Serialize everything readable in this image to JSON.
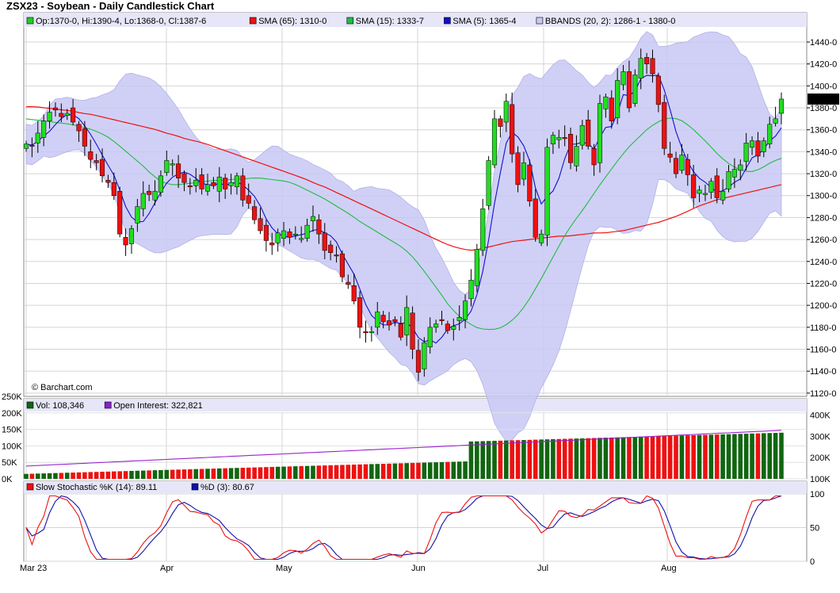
{
  "title": "ZSX23 - Soybean - Daily Candlestick Chart",
  "watermark": "© Barchart.com",
  "legend_price": [
    {
      "label": "Op:1370-0, Hi:1390-4, Lo:1368-0, Cl:1387-6",
      "color": "#22cc22"
    },
    {
      "label": "SMA (65): 1310-0",
      "color": "#ee1111"
    },
    {
      "label": "SMA (15): 1333-7",
      "color": "#22bb44"
    },
    {
      "label": "SMA (5): 1365-4",
      "color": "#1111cc"
    },
    {
      "label": "BBANDS (20, 2): 1286-1 - 1380-0",
      "color": "#c8c8f4"
    }
  ],
  "legend_volume": [
    {
      "label": "Vol: 108,346",
      "color": "#116611"
    },
    {
      "label": "Open Interest: 322,821",
      "color": "#8822cc"
    }
  ],
  "legend_stoch": [
    {
      "label": "Slow Stochastic %K (14): 89.11",
      "color": "#ee1111"
    },
    {
      "label": "%D (3): 80.67",
      "color": "#1111aa"
    }
  ],
  "last_price_label": "1387-6",
  "colors": {
    "up": "#22dd22",
    "down": "#ee1111",
    "vol_up": "#116611",
    "vol_down": "#ee1111",
    "band": "#c8c8f4"
  },
  "chart_data": {
    "type": "candlestick",
    "symbol": "ZSX23",
    "x_tick_labels": [
      "Mar 23",
      "Apr",
      "May",
      "Jun",
      "Jul",
      "Aug"
    ],
    "price_ticks": [
      "1440-0",
      "1420-0",
      "1400-0",
      "1380-0",
      "1360-0",
      "1340-0",
      "1320-0",
      "1300-0",
      "1280-0",
      "1260-0",
      "1240-0",
      "1220-0",
      "1200-0",
      "1180-0",
      "1160-0",
      "1140-0",
      "1120-0"
    ],
    "price_range": [
      1117,
      1453
    ],
    "volume_left_ticks": [
      "250K",
      "200K",
      "150K",
      "100K",
      "50K",
      "0K"
    ],
    "volume_range": [
      0,
      250000
    ],
    "oi_right_ticks": [
      "400K",
      "300K",
      "200K",
      "100K"
    ],
    "oi_range": [
      100000,
      420000
    ],
    "stoch_ticks": [
      "100",
      "50",
      "0"
    ],
    "stoch_range": [
      0,
      100
    ],
    "closes": [
      1347,
      1345,
      1357,
      1368,
      1376,
      1378,
      1372,
      1375,
      1367,
      1359,
      1345,
      1333,
      1330,
      1318,
      1312,
      1300,
      1265,
      1255,
      1270,
      1290,
      1302,
      1301,
      1304,
      1318,
      1332,
      1329,
      1316,
      1312,
      1308,
      1314,
      1306,
      1310,
      1309,
      1317,
      1306,
      1312,
      1318,
      1296,
      1293,
      1278,
      1268,
      1259,
      1255,
      1266,
      1268,
      1262,
      1265,
      1261,
      1273,
      1281,
      1265,
      1250,
      1248,
      1245,
      1226,
      1219,
      1204,
      1180,
      1175,
      1176,
      1194,
      1185,
      1182,
      1185,
      1171,
      1198,
      1160,
      1139,
      1166,
      1180,
      1183,
      1186,
      1177,
      1181,
      1189,
      1204,
      1223,
      1251,
      1288,
      1332,
      1370,
      1363,
      1386,
      1338,
      1310,
      1330,
      1295,
      1262,
      1265,
      1344,
      1355,
      1353,
      1352,
      1330,
      1345,
      1364,
      1345,
      1328,
      1384,
      1390,
      1368,
      1405,
      1413,
      1380,
      1410,
      1425,
      1420,
      1411,
      1383,
      1343,
      1335,
      1320,
      1337,
      1319,
      1298,
      1305,
      1302,
      1313,
      1298,
      1304,
      1322,
      1324,
      1328,
      1348,
      1350,
      1336,
      1350,
      1365,
      1370,
      1388
    ],
    "sma65": [
      1381,
      1381,
      1380,
      1379,
      1378,
      1377,
      1375,
      1374,
      1372,
      1370,
      1368,
      1366,
      1364,
      1362,
      1360,
      1357,
      1355,
      1352,
      1350,
      1348,
      1345,
      1342,
      1339,
      1336,
      1333,
      1330,
      1327,
      1324,
      1321,
      1318,
      1315,
      1311,
      1308,
      1304,
      1300,
      1296,
      1292,
      1288,
      1284,
      1280,
      1276,
      1272,
      1268,
      1264,
      1260,
      1256,
      1253,
      1251,
      1250,
      1252,
      1254,
      1256,
      1258,
      1259,
      1260,
      1261,
      1262,
      1263,
      1263,
      1264,
      1265,
      1266,
      1266,
      1267,
      1268,
      1270,
      1272,
      1274,
      1276,
      1279,
      1282,
      1286,
      1290,
      1293,
      1296,
      1298,
      1300,
      1302,
      1304,
      1306,
      1308,
      1310
    ],
    "sma15": [
      1370,
      1369,
      1368,
      1367,
      1366,
      1365,
      1363,
      1361,
      1358,
      1354,
      1348,
      1341,
      1334,
      1327,
      1319,
      1313,
      1310,
      1310,
      1311,
      1312,
      1313,
      1314,
      1314,
      1315,
      1315,
      1316,
      1316,
      1315,
      1314,
      1313,
      1310,
      1306,
      1302,
      1298,
      1293,
      1288,
      1283,
      1277,
      1272,
      1267,
      1262,
      1257,
      1252,
      1244,
      1234,
      1223,
      1212,
      1200,
      1191,
      1185,
      1180,
      1178,
      1178,
      1180,
      1186,
      1194,
      1206,
      1220,
      1235,
      1250,
      1265,
      1277,
      1288,
      1300,
      1312,
      1323,
      1334,
      1344,
      1352,
      1360,
      1366,
      1370,
      1371,
      1368,
      1362,
      1354,
      1346,
      1337,
      1330,
      1325,
      1322,
      1322,
      1326,
      1331,
      1334
    ]
  }
}
